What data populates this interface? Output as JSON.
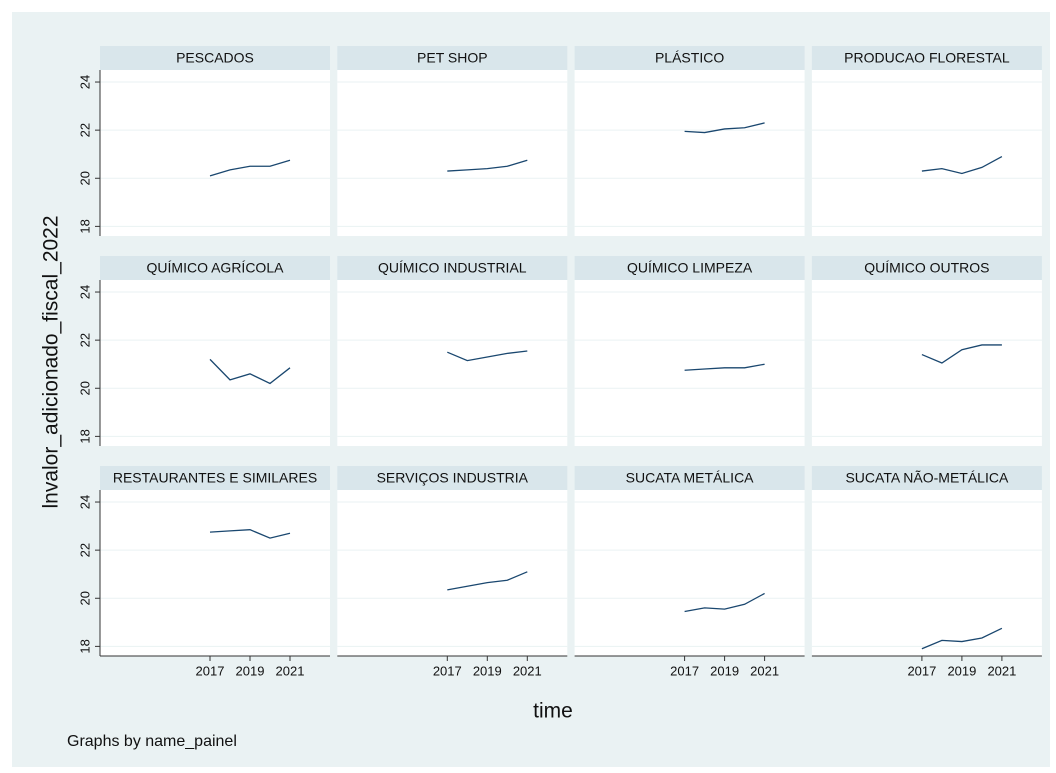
{
  "chart_data": {
    "type": "line",
    "ylabel": "lnvalor_adicionado_fiscal_2022",
    "xlabel": "time",
    "note": "Graphs by name_painel",
    "xlim": [
      2011.5,
      2023
    ],
    "xticks": [
      2017,
      2019,
      2021
    ],
    "ylim": [
      17.6,
      24.5
    ],
    "yticks": [
      18,
      20,
      22,
      24
    ],
    "color": "#1a476f",
    "grid": true,
    "panels": [
      {
        "title": "PESCADOS",
        "x": [
          2017,
          2018,
          2019,
          2020,
          2021
        ],
        "values": [
          20.1,
          20.35,
          20.5,
          20.5,
          20.75
        ]
      },
      {
        "title": "PET SHOP",
        "x": [
          2017,
          2018,
          2019,
          2020,
          2021
        ],
        "values": [
          20.3,
          20.35,
          20.4,
          20.5,
          20.75
        ]
      },
      {
        "title": "PLÁSTICO",
        "x": [
          2017,
          2018,
          2019,
          2020,
          2021
        ],
        "values": [
          21.95,
          21.9,
          22.05,
          22.1,
          22.3
        ]
      },
      {
        "title": "PRODUCAO FLORESTAL",
        "x": [
          2017,
          2018,
          2019,
          2020,
          2021
        ],
        "values": [
          20.3,
          20.4,
          20.2,
          20.45,
          20.9
        ]
      },
      {
        "title": "QUÍMICO AGRÍCOLA",
        "x": [
          2017,
          2018,
          2019,
          2020,
          2021
        ],
        "values": [
          21.2,
          20.35,
          20.6,
          20.2,
          20.85
        ]
      },
      {
        "title": "QUÍMICO INDUSTRIAL",
        "x": [
          2017,
          2018,
          2019,
          2020,
          2021
        ],
        "values": [
          21.5,
          21.15,
          21.3,
          21.45,
          21.55
        ]
      },
      {
        "title": "QUÍMICO LIMPEZA",
        "x": [
          2017,
          2018,
          2019,
          2020,
          2021
        ],
        "values": [
          20.75,
          20.8,
          20.85,
          20.85,
          21.0
        ]
      },
      {
        "title": "QUÍMICO OUTROS",
        "x": [
          2017,
          2018,
          2019,
          2020,
          2021
        ],
        "values": [
          21.4,
          21.05,
          21.6,
          21.8,
          21.8
        ]
      },
      {
        "title": "RESTAURANTES E SIMILARES",
        "x": [
          2017,
          2018,
          2019,
          2020,
          2021
        ],
        "values": [
          22.75,
          22.8,
          22.85,
          22.5,
          22.7
        ]
      },
      {
        "title": "SERVIÇOS INDUSTRIA",
        "x": [
          2017,
          2018,
          2019,
          2020,
          2021
        ],
        "values": [
          20.35,
          20.5,
          20.65,
          20.75,
          21.1
        ]
      },
      {
        "title": "SUCATA METÁLICA",
        "x": [
          2017,
          2018,
          2019,
          2020,
          2021
        ],
        "values": [
          19.45,
          19.6,
          19.55,
          19.75,
          20.2
        ]
      },
      {
        "title": "SUCATA NÃO-METÁLICA",
        "x": [
          2017,
          2018,
          2019,
          2020,
          2021
        ],
        "values": [
          17.9,
          18.25,
          18.2,
          18.35,
          18.75
        ]
      }
    ]
  }
}
